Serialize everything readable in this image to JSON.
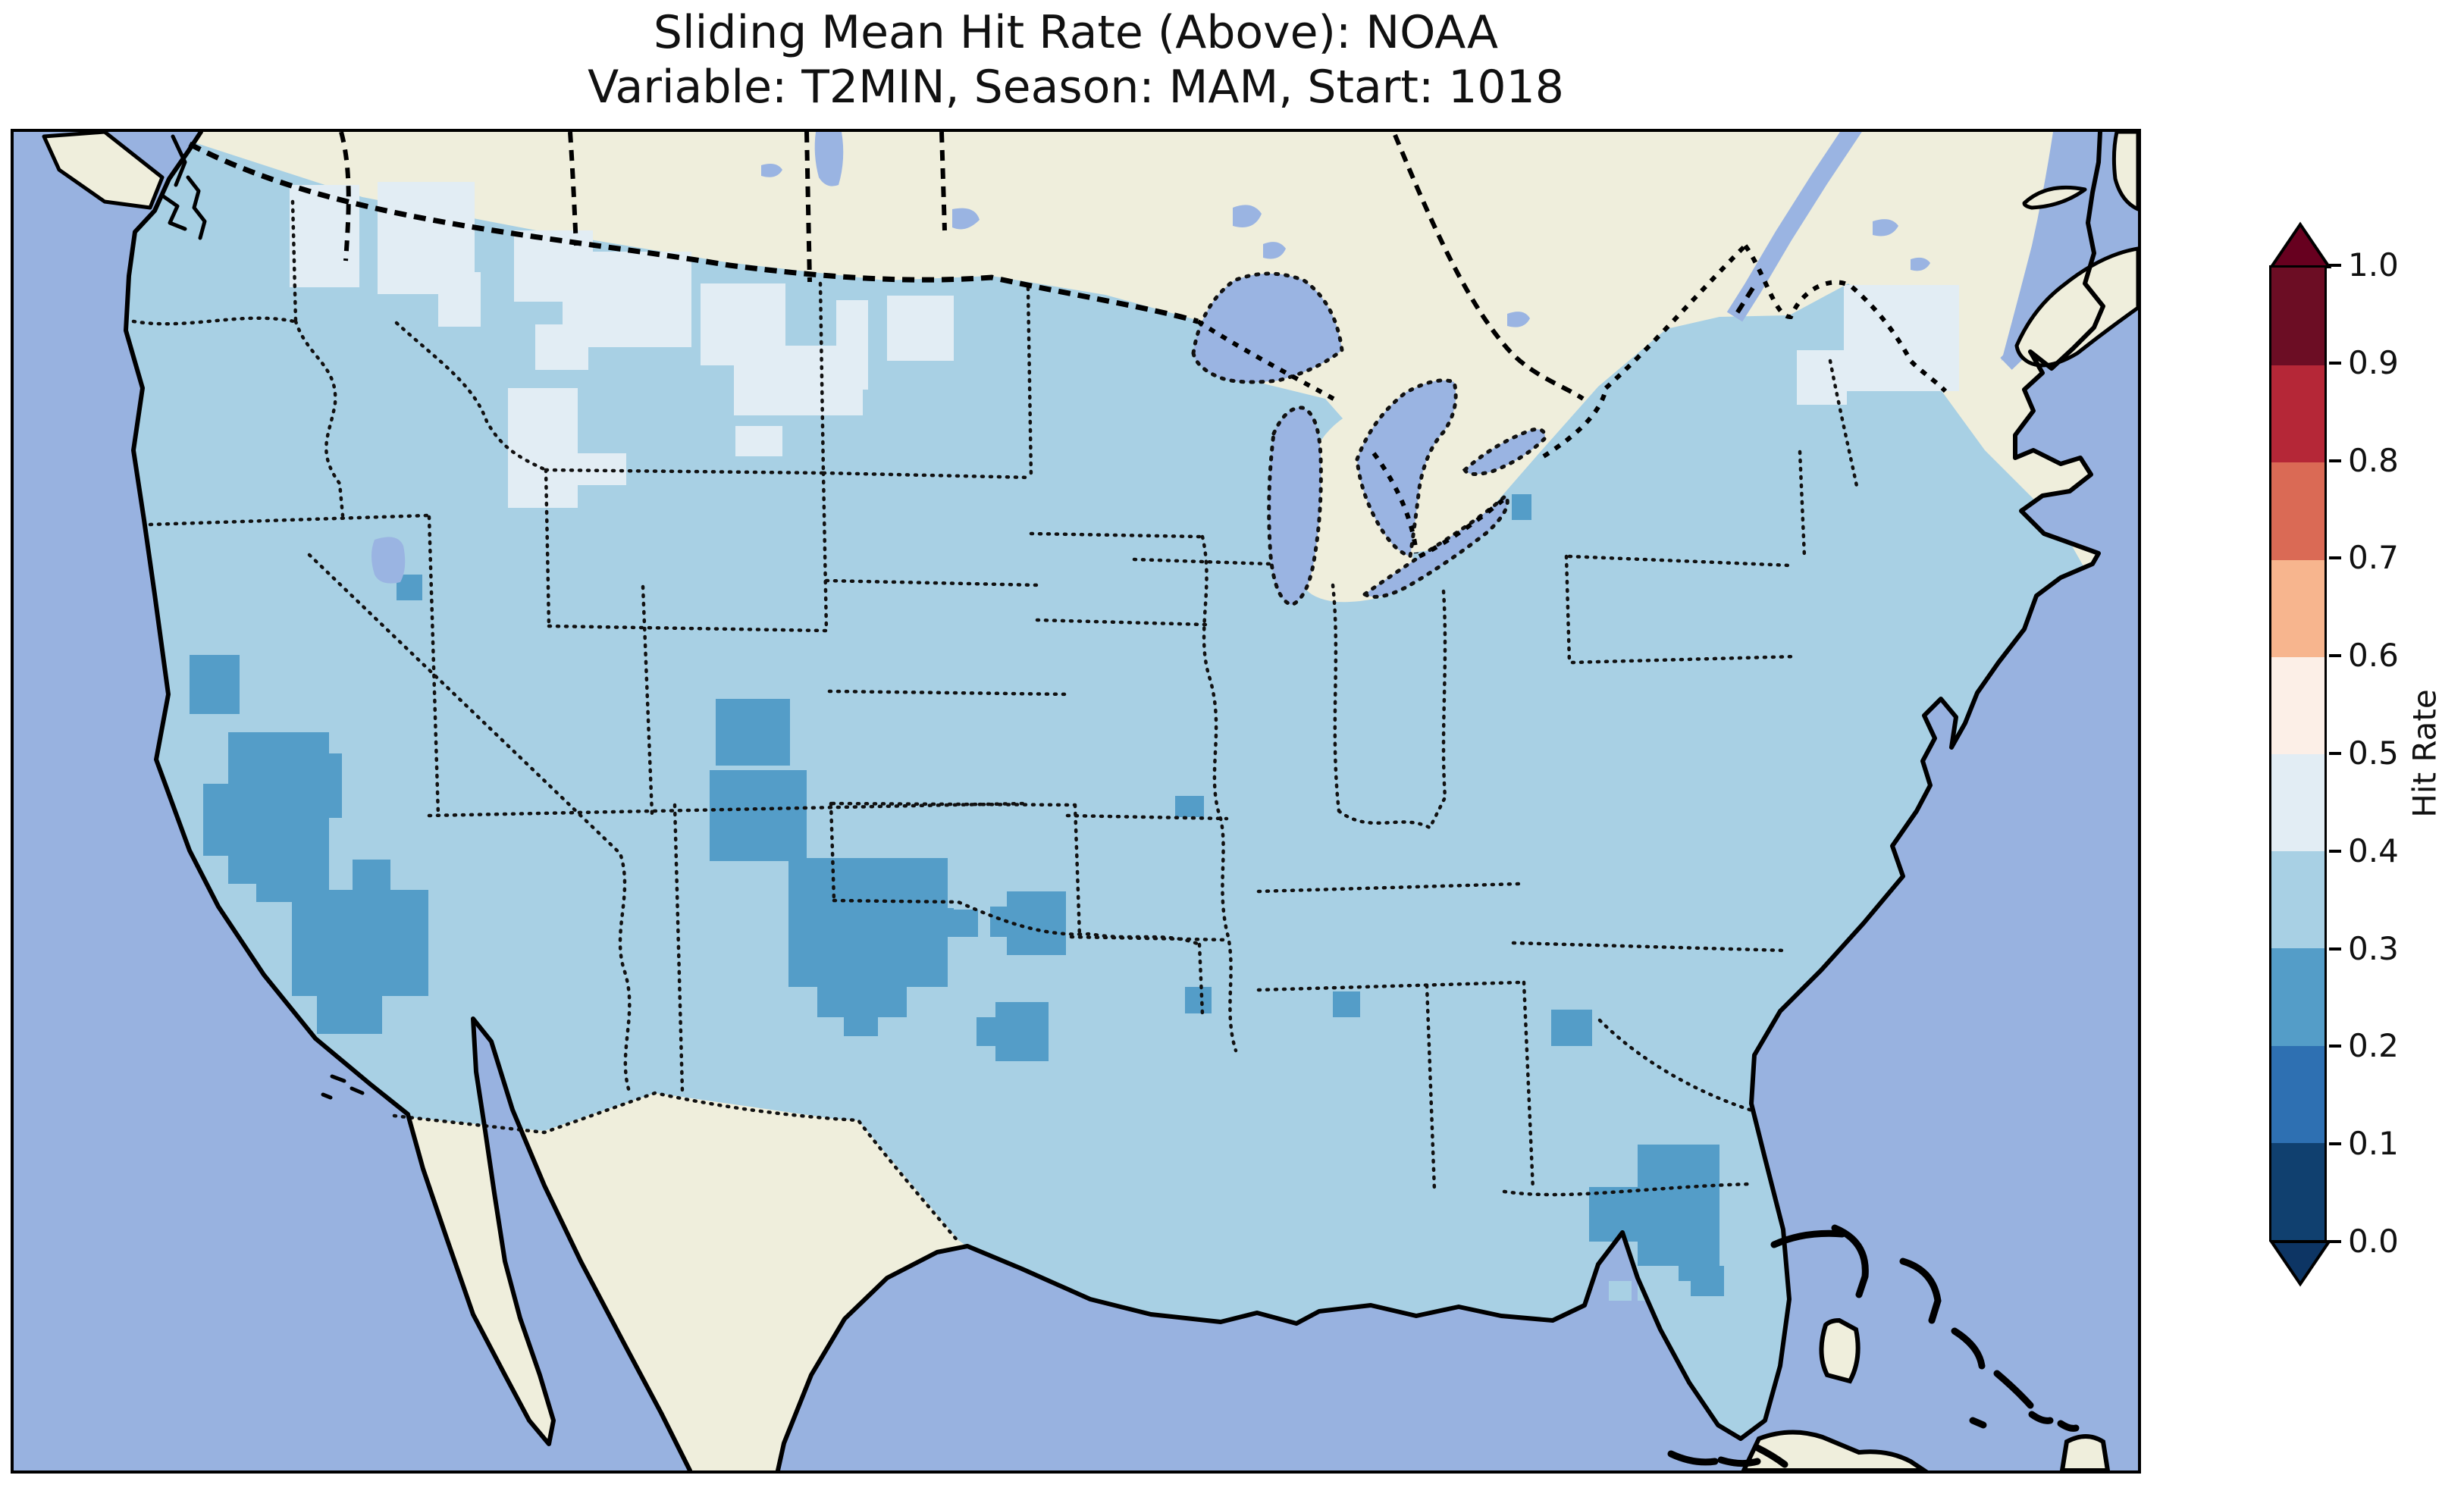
{
  "title": {
    "line1": "Sliding Mean Hit Rate (Above): NOAA",
    "line2": "Variable: T2MIN, Season: MAM, Start: 1018"
  },
  "colorbar": {
    "label": "Hit Rate",
    "ticks": [
      "1.0",
      "0.9",
      "0.8",
      "0.7",
      "0.6",
      "0.5",
      "0.4",
      "0.3",
      "0.2",
      "0.1",
      "0.0"
    ],
    "bins_bottom_to_top": [
      {
        "range": "0.0-0.1",
        "color": "#10406f"
      },
      {
        "range": "0.1-0.2",
        "color": "#2e70b2"
      },
      {
        "range": "0.2-0.3",
        "color": "#549dc8"
      },
      {
        "range": "0.3-0.4",
        "color": "#a8d0e4"
      },
      {
        "range": "0.4-0.5",
        "color": "#e2edf4"
      },
      {
        "range": "0.5-0.6",
        "color": "#fcefe7"
      },
      {
        "range": "0.6-0.7",
        "color": "#f7b58e"
      },
      {
        "range": "0.7-0.8",
        "color": "#da6a55"
      },
      {
        "range": "0.8-0.9",
        "color": "#b52737"
      },
      {
        "range": "0.9-1.0",
        "color": "#6c0d24"
      }
    ],
    "arrow_over_color": "#67001f",
    "arrow_under_color": "#0d3564"
  },
  "map_colors": {
    "ocean": "#98b2e0",
    "lakes": "#9ab4e2",
    "land_no_data": "#efeedc",
    "coastline": "#000000",
    "borders": "#111111"
  },
  "chart_data": {
    "type": "heatmap",
    "title": "Sliding Mean Hit Rate (Above): NOAA",
    "subtitle": "Variable: T2MIN, Season: MAM, Start: 1018",
    "colorbar_label": "Hit Rate",
    "bin_edges": [
      0.0,
      0.1,
      0.2,
      0.3,
      0.4,
      0.5,
      0.6,
      0.7,
      0.8,
      0.9,
      1.0
    ],
    "tick_labels": [
      "1.0",
      "0.9",
      "0.8",
      "0.7",
      "0.6",
      "0.5",
      "0.4",
      "0.3",
      "0.2",
      "0.1",
      "0.0"
    ],
    "colormap": "RdBu_r (discrete, 10 bins, extend both)",
    "legend_position": "right",
    "base_value_bin": "0.3-0.4",
    "bin_colors": {
      "0.0-0.1": "#10406f",
      "0.1-0.2": "#2e70b2",
      "0.2-0.3": "#549dc8",
      "0.3-0.4": "#a8d0e4",
      "0.4-0.5": "#e2edf4",
      "0.5-0.6": "#fcefe7",
      "0.6-0.7": "#f7b58e",
      "0.7-0.8": "#da6a55",
      "0.8-0.9": "#b52737",
      "0.9-1.0": "#6c0d24"
    },
    "regions_summary": [
      {
        "area": "most of contiguous United States",
        "hit_rate": "0.3-0.4"
      },
      {
        "area": "Nevada / eastern California / Arizona",
        "hit_rate": "0.2-0.3"
      },
      {
        "area": "western Colorado, NE New Mexico, TX-OK panhandles",
        "hit_rate": "0.2-0.3"
      },
      {
        "area": "Arkansas, NE Texas / NW Louisiana",
        "hit_rate": "0.2-0.3"
      },
      {
        "area": "central Georgia, south-central Florida",
        "hit_rate": "0.2-0.3"
      },
      {
        "area": "single cells: N Utah, W Kentucky, Mississippi, N Alabama, W New York",
        "hit_rate": "0.2-0.3"
      },
      {
        "area": "NE Washington, N Idaho, NW Montana",
        "hit_rate": "0.4-0.5"
      },
      {
        "area": "ND / MN northern border, E Wyoming-Idaho border, central SD",
        "hit_rate": "0.4-0.5"
      },
      {
        "area": "southern Maine, Vermont / New Hampshire",
        "hit_rate": "0.4-0.5"
      },
      {
        "area": "Canada, Mexico, lower Michigan, islands",
        "hit_rate": "no data"
      }
    ],
    "patches": {
      "0.2-0.3": [
        [
          232,
          690,
          66,
          78
        ],
        [
          283,
          792,
          133,
          200
        ],
        [
          250,
          860,
          55,
          95
        ],
        [
          383,
          820,
          50,
          85
        ],
        [
          320,
          940,
          96,
          76
        ],
        [
          367,
          1000,
          180,
          140
        ],
        [
          400,
          1140,
          86,
          50
        ],
        [
          447,
          960,
          50,
          45
        ],
        [
          505,
          584,
          34,
          34
        ],
        [
          926,
          748,
          98,
          88
        ],
        [
          918,
          842,
          128,
          120
        ],
        [
          1022,
          958,
          210,
          170
        ],
        [
          1128,
          1024,
          112,
          38
        ],
        [
          1232,
          1026,
          40,
          36
        ],
        [
          1060,
          1128,
          118,
          40
        ],
        [
          1095,
          1165,
          45,
          28
        ],
        [
          1310,
          1002,
          78,
          84
        ],
        [
          1288,
          1022,
          26,
          40
        ],
        [
          1295,
          1148,
          70,
          78
        ],
        [
          1270,
          1168,
          28,
          38
        ],
        [
          1532,
          876,
          38,
          28
        ],
        [
          1545,
          1128,
          35,
          35
        ],
        [
          1740,
          1134,
          36,
          34
        ],
        [
          2028,
          1158,
          54,
          48
        ],
        [
          1976,
          478,
          26,
          34
        ],
        [
          2142,
          1336,
          108,
          160
        ],
        [
          2078,
          1392,
          66,
          72
        ],
        [
          2196,
          1496,
          60,
          40
        ]
      ],
      "0.4-0.5": [
        [
          364,
          70,
          92,
          135
        ],
        [
          480,
          66,
          128,
          148
        ],
        [
          560,
          185,
          56,
          72
        ],
        [
          660,
          130,
          104,
          94
        ],
        [
          724,
          158,
          170,
          126
        ],
        [
          688,
          254,
          70,
          60
        ],
        [
          906,
          200,
          112,
          108
        ],
        [
          950,
          282,
          170,
          92
        ],
        [
          1085,
          222,
          42,
          118
        ],
        [
          1152,
          216,
          88,
          86
        ],
        [
          952,
          388,
          62,
          40
        ],
        [
          652,
          338,
          92,
          158
        ],
        [
          712,
          424,
          96,
          42
        ],
        [
          2414,
          202,
          152,
          140
        ],
        [
          2352,
          288,
          66,
          72
        ]
      ],
      "offshore_0.3-0.4": [
        [
          2104,
          1516,
          30,
          26
        ],
        [
          2142,
          1516,
          28,
          26
        ],
        [
          2182,
          1516,
          30,
          26
        ]
      ]
    }
  }
}
